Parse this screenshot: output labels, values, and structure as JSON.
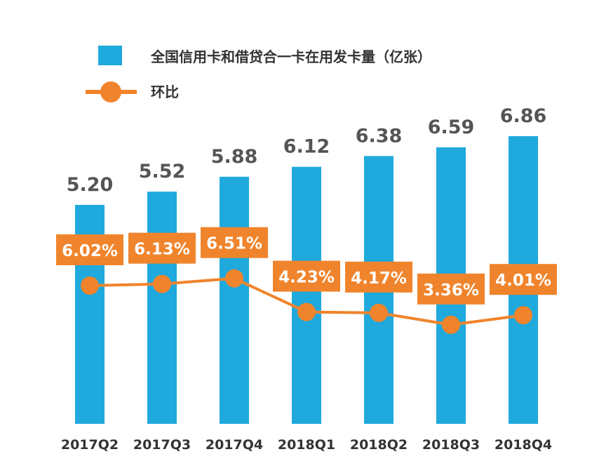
{
  "chart_data": {
    "type": "bar",
    "categories": [
      "2017Q2",
      "2017Q3",
      "2017Q4",
      "2018Q1",
      "2018Q2",
      "2018Q3",
      "2018Q4"
    ],
    "series": [
      {
        "name": "全国信用卡和借贷合一卡在用发卡量（亿张）",
        "type": "bar",
        "color": "#1fa9dd",
        "values": [
          5.2,
          5.52,
          5.88,
          6.12,
          6.38,
          6.59,
          6.86
        ],
        "labels": [
          "5.20",
          "5.52",
          "5.88",
          "6.12",
          "6.38",
          "6.59",
          "6.86"
        ]
      },
      {
        "name": "环比",
        "type": "line",
        "color": "#f0842c",
        "values": [
          6.02,
          6.13,
          6.51,
          4.23,
          4.17,
          3.36,
          4.01
        ],
        "labels": [
          "6.02%",
          "6.13%",
          "6.51%",
          "4.23%",
          "4.17%",
          "3.36%",
          "4.01%"
        ]
      }
    ],
    "legend": {
      "position": "top-left"
    },
    "grid": false
  }
}
